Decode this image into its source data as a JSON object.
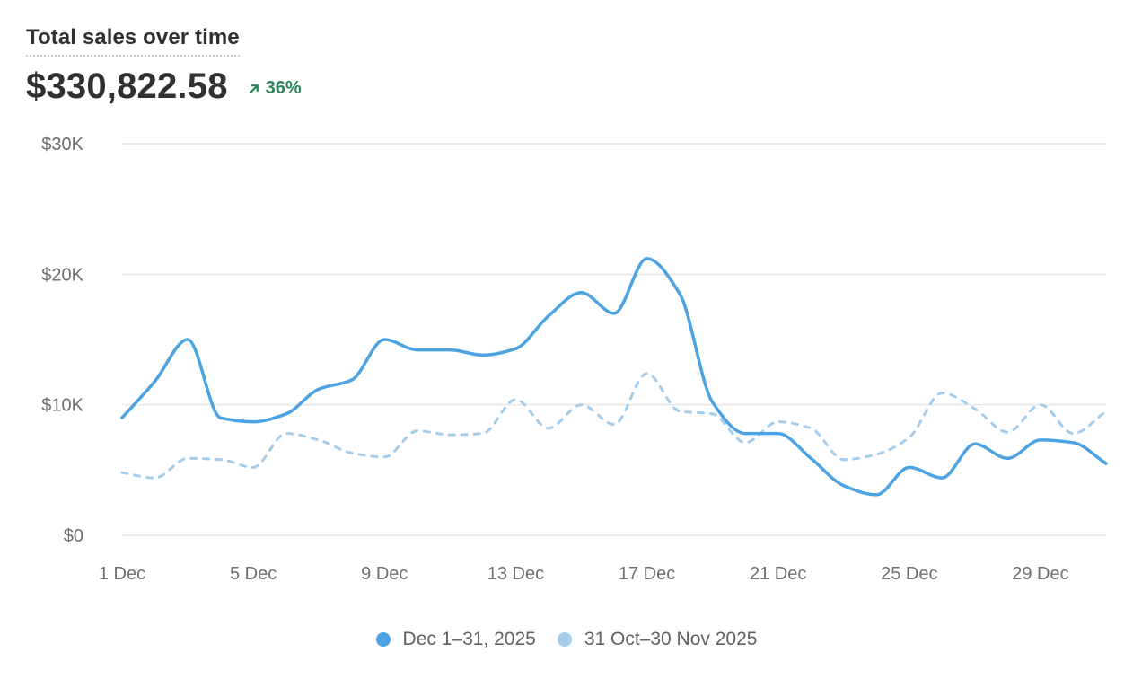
{
  "card": {
    "title": "Total sales over time",
    "total": "$330,822.58",
    "change": "36%",
    "change_direction": "up",
    "change_color": "#29845a"
  },
  "chart_data": {
    "type": "line",
    "title": "Total sales over time",
    "xlabel": "",
    "ylabel": "",
    "ylim": [
      0,
      30000
    ],
    "y_ticks": [
      {
        "value": 0,
        "label": "$0"
      },
      {
        "value": 10000,
        "label": "$10K"
      },
      {
        "value": 20000,
        "label": "$20K"
      },
      {
        "value": 30000,
        "label": "$30K"
      }
    ],
    "x_ticks": [
      {
        "day": 1,
        "label": "1 Dec"
      },
      {
        "day": 5,
        "label": "5 Dec"
      },
      {
        "day": 9,
        "label": "9 Dec"
      },
      {
        "day": 13,
        "label": "13 Dec"
      },
      {
        "day": 17,
        "label": "17 Dec"
      },
      {
        "day": 21,
        "label": "21 Dec"
      },
      {
        "day": 25,
        "label": "25 Dec"
      },
      {
        "day": 29,
        "label": "29 Dec"
      }
    ],
    "x": [
      1,
      2,
      3,
      4,
      5,
      6,
      7,
      8,
      9,
      10,
      11,
      12,
      13,
      14,
      15,
      16,
      17,
      18,
      19,
      20,
      21,
      22,
      23,
      24,
      25,
      26,
      27,
      28,
      29,
      30,
      31
    ],
    "grid": true,
    "legend_position": "bottom-center",
    "series": [
      {
        "name": "Dec 1–31, 2025",
        "color": "#4da3e2",
        "style": "solid",
        "values": [
          9000,
          11800,
          15000,
          9000,
          8700,
          9300,
          11200,
          11900,
          15000,
          14200,
          14200,
          13800,
          14300,
          16800,
          18600,
          17000,
          21200,
          18500,
          10200,
          7800,
          7800,
          5900,
          3800,
          3100,
          5200,
          4400,
          7000,
          5900,
          7300,
          7100,
          5500
        ]
      },
      {
        "name": "31 Oct–30 Nov 2025",
        "color": "#a4cdec",
        "style": "dashed",
        "values": [
          4800,
          4400,
          5900,
          5800,
          5200,
          7800,
          7300,
          6300,
          6000,
          8000,
          7700,
          7800,
          10400,
          8200,
          10000,
          8500,
          12400,
          9500,
          9300,
          7100,
          8700,
          8200,
          5800,
          6200,
          7500,
          10900,
          9700,
          7900,
          10000,
          7800,
          9500
        ]
      }
    ]
  },
  "colors": {
    "grid": "#e6e6e6",
    "axis_text": "#6f6f6f"
  },
  "icons": {
    "change": "arrow-up-right-icon"
  }
}
